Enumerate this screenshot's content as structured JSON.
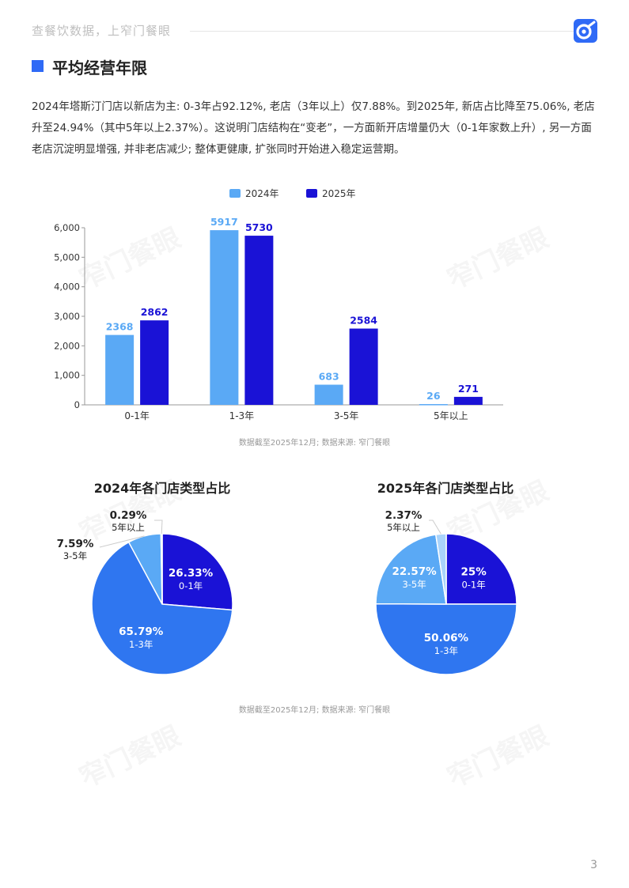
{
  "header": {
    "text": "查餐饮数据，上窄门餐眼",
    "logo_icon": "zhaimen-logo-icon"
  },
  "section_title": "平均经营年限",
  "description": "2024年塔斯汀门店以新店为主: 0-3年占92.12%, 老店（3年以上）仅7.88%。到2025年, 新店占比降至75.06%, 老店升至24.94%（其中5年以上2.37%）。这说明门店结构在“变老”，一方面新开店增量仍大（0-1年家数上升）, 另一方面老店沉淀明显增强, 并非老店减少; 整体更健康, 扩张同时开始进入稳定运营期。",
  "watermark": "窄门餐眼",
  "colors": {
    "light_blue": "#5aa9f5",
    "dark_blue": "#1a12d6",
    "mid_blue": "#2f76f0",
    "pale_blue": "#a9d3fb",
    "accent": "#2f6af6"
  },
  "chart_data": [
    {
      "type": "bar",
      "categories": [
        "0-1年",
        "1-3年",
        "3-5年",
        "5年以上"
      ],
      "series": [
        {
          "name": "2024年",
          "values": [
            2368,
            5917,
            683,
            26
          ],
          "color": "#5aa9f5"
        },
        {
          "name": "2025年",
          "values": [
            2862,
            5730,
            2584,
            271
          ],
          "color": "#1a12d6"
        }
      ],
      "ylim": [
        0,
        6000
      ],
      "yticks": [
        0,
        1000,
        2000,
        3000,
        4000,
        5000,
        6000
      ],
      "ytick_labels": [
        "0",
        "1,000",
        "2,000",
        "3,000",
        "4,000",
        "5,000",
        "6,000"
      ],
      "legend": "top-center",
      "note": "数据截至2025年12月; 数据来源: 窄门餐眼"
    },
    {
      "type": "pie",
      "title": "2024年各门店类型占比",
      "slices": [
        {
          "label": "0-1年",
          "value": 26.33,
          "text": "26.33%",
          "color": "#1a12d6"
        },
        {
          "label": "1-3年",
          "value": 65.79,
          "text": "65.79%",
          "color": "#2f76f0"
        },
        {
          "label": "3-5年",
          "value": 7.59,
          "text": "7.59%",
          "color": "#5aa9f5"
        },
        {
          "label": "5年以上",
          "value": 0.29,
          "text": "0.29%",
          "color": "#a9d3fb"
        }
      ]
    },
    {
      "type": "pie",
      "title": "2025年各门店类型占比",
      "slices": [
        {
          "label": "0-1年",
          "value": 25,
          "text": "25%",
          "color": "#1a12d6"
        },
        {
          "label": "1-3年",
          "value": 50.06,
          "text": "50.06%",
          "color": "#2f76f0"
        },
        {
          "label": "3-5年",
          "value": 22.57,
          "text": "22.57%",
          "color": "#5aa9f5"
        },
        {
          "label": "5年以上",
          "value": 2.37,
          "text": "2.37%",
          "color": "#a9d3fb"
        }
      ]
    }
  ],
  "pie_note": "数据截至2025年12月; 数据来源: 窄门餐眼",
  "page_number": "3"
}
